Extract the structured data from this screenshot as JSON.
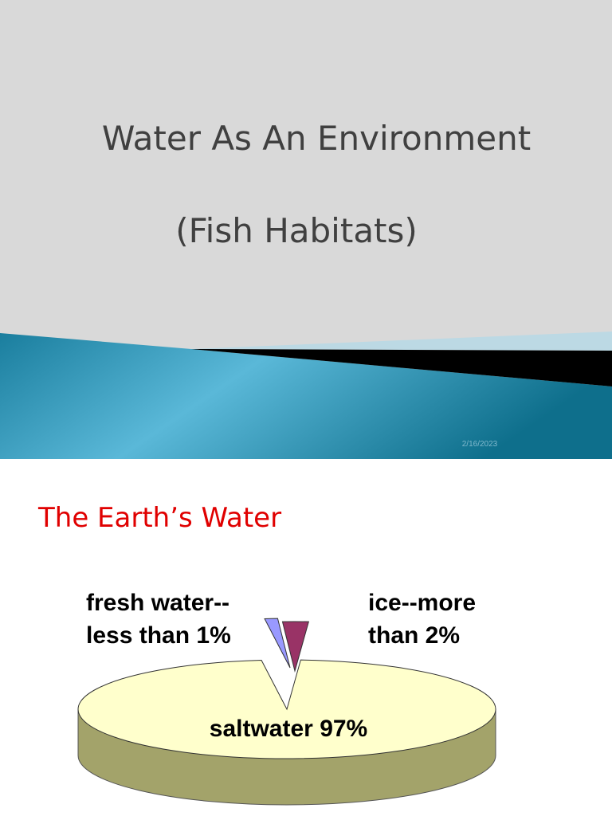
{
  "slide_1": {
    "title_lines": [
      "Water As An Environment",
      "(Fish Habitats)"
    ],
    "date": "2/16/2023"
  },
  "chart_data": {
    "type": "pie",
    "title": "The Earth’s Water",
    "categories": [
      "fresh water--",
      "ice--more",
      "saltwater"
    ],
    "values": [
      1,
      2,
      97
    ],
    "value_labels": [
      "less than 1%",
      "than 2%",
      "97%"
    ],
    "colors": [
      "#9999ff",
      "#993366",
      "#ffffcc"
    ]
  }
}
